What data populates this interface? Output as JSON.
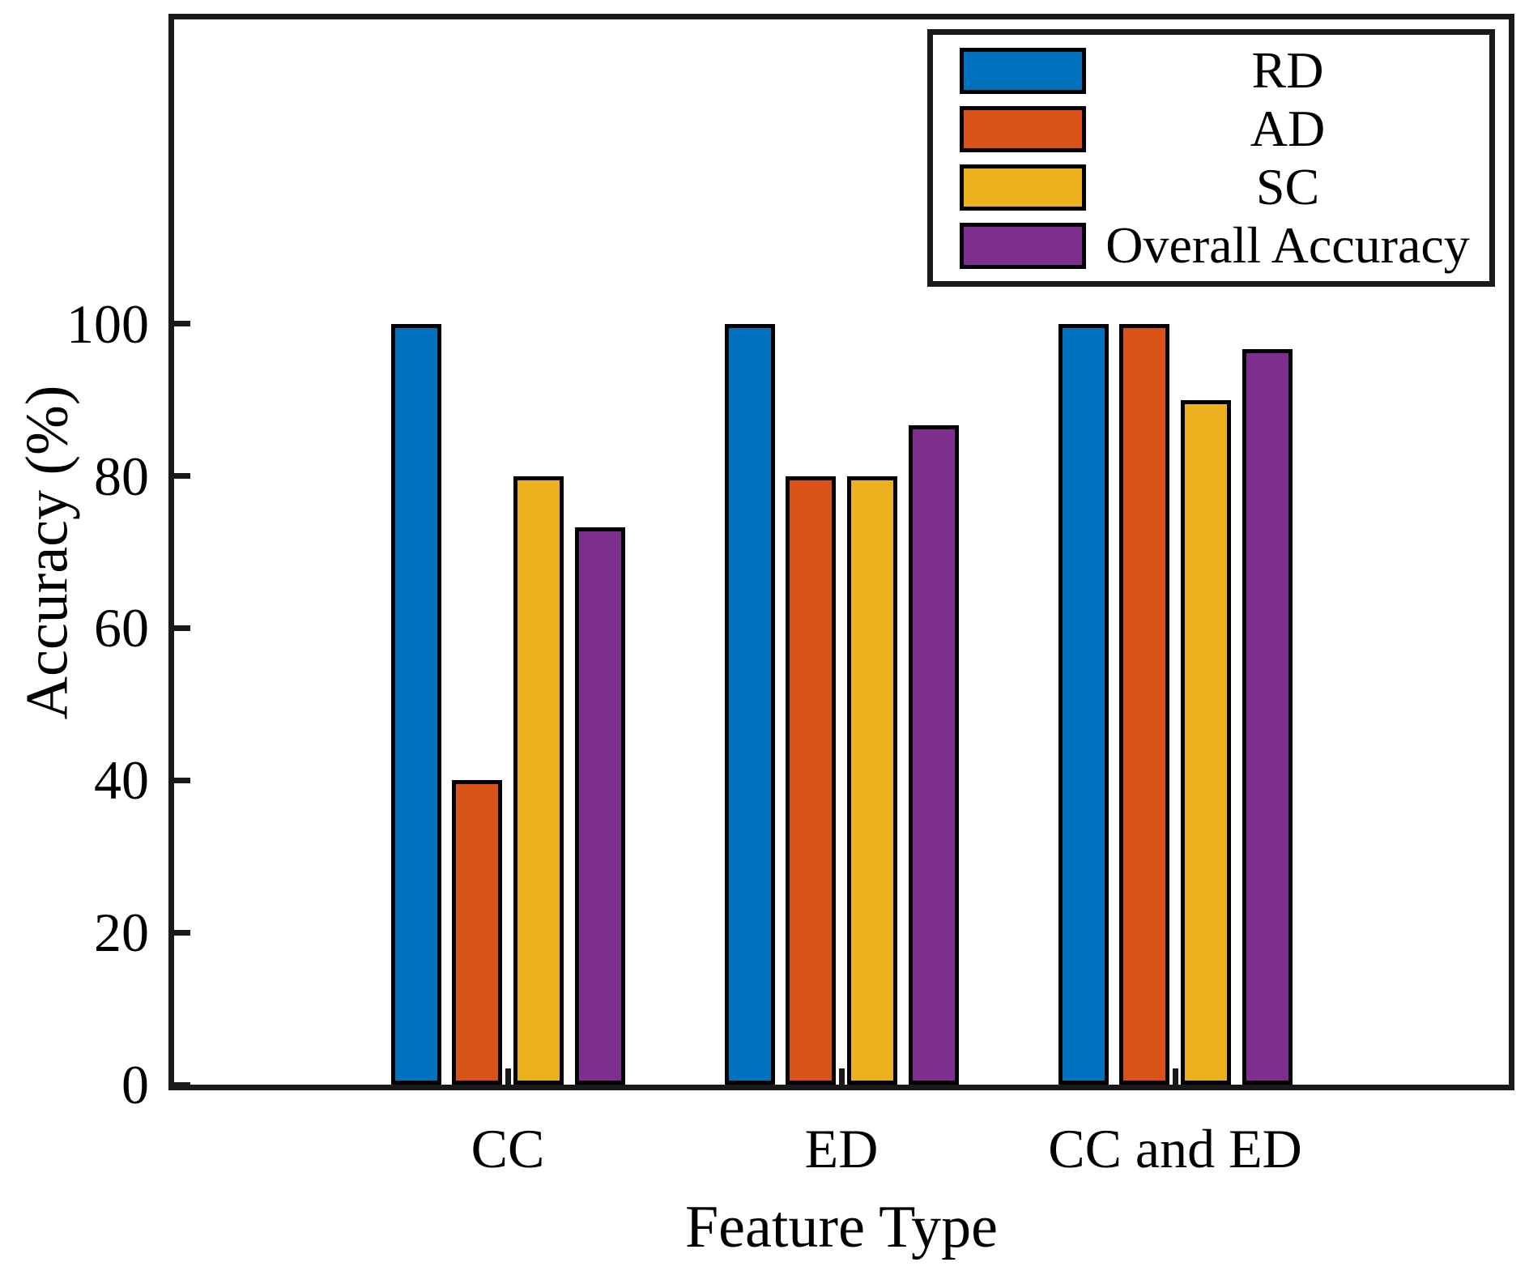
{
  "chart_data": {
    "type": "bar",
    "title": "",
    "xlabel": "Feature Type",
    "ylabel": "Accuracy (%)",
    "categories": [
      "CC",
      "ED",
      "CC and ED"
    ],
    "series": [
      {
        "name": "RD",
        "color": "#0072BD",
        "values": [
          100,
          100,
          100
        ]
      },
      {
        "name": "AD",
        "color": "#D95319",
        "values": [
          40,
          80,
          100
        ]
      },
      {
        "name": "SC",
        "color": "#EDB120",
        "values": [
          80,
          80,
          90
        ]
      },
      {
        "name": "Overall Accuracy",
        "color": "#7E2F8E",
        "values": [
          73.3,
          86.7,
          96.7
        ]
      }
    ],
    "ylim": [
      0,
      140
    ],
    "yticks": [
      0,
      20,
      40,
      60,
      80,
      100
    ],
    "grid": false,
    "legend_position": "top-right",
    "bar_edge_color": "#000000",
    "axis_color": "#1a1a1a",
    "background_color": "#ffffff"
  }
}
